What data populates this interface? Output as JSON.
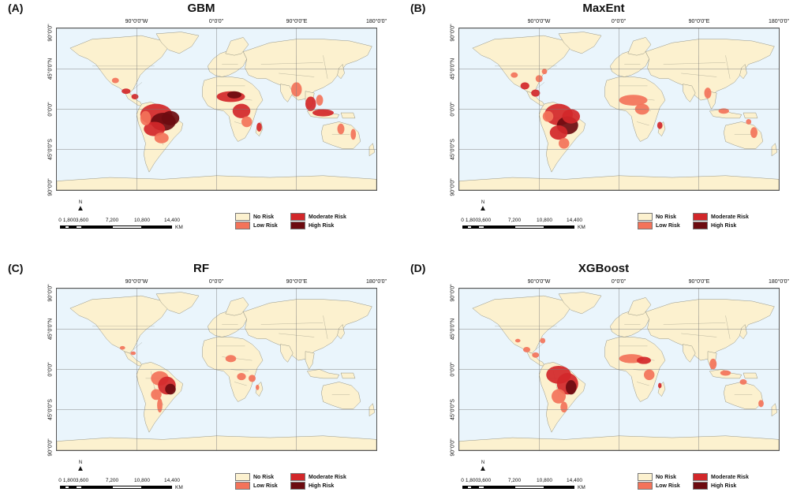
{
  "panels": [
    {
      "letter": "(A)",
      "title": "GBM",
      "variant": "A"
    },
    {
      "letter": "(B)",
      "title": "MaxEnt",
      "variant": "B"
    },
    {
      "letter": "(C)",
      "title": "RF",
      "variant": "C"
    },
    {
      "letter": "(D)",
      "title": "XGBoost",
      "variant": "D"
    }
  ],
  "longitude_labels": [
    "90°0'0\"W",
    "0°0'0\"",
    "90°0'0\"E",
    "180°0'0\""
  ],
  "latitude_labels": [
    "90°0'0\"",
    "45°0'0\"N",
    "0°0'0\"",
    "45°0'0\"S",
    "90°0'0\""
  ],
  "scale_bar": {
    "ticks": [
      "0",
      "1,800",
      "3,600",
      "7,200",
      "10,800",
      "14,400"
    ],
    "unit": "KM",
    "north": "N"
  },
  "legend": [
    {
      "label": "No Risk",
      "color": "#fcf1cf"
    },
    {
      "label": "Moderate Risk",
      "color": "#d2272a"
    },
    {
      "label": "Low Risk",
      "color": "#f3735a"
    },
    {
      "label": "High Risk",
      "color": "#6c0b10"
    }
  ],
  "colors": {
    "ocean": "#eaf5fc",
    "land": "#fcf1cf",
    "border": "#8a8a7a",
    "grid": "#7a7a7a"
  }
}
